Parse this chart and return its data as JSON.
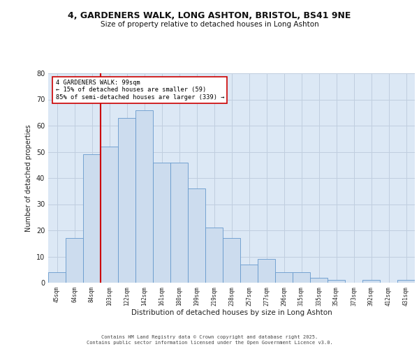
{
  "title1": "4, GARDENERS WALK, LONG ASHTON, BRISTOL, BS41 9NE",
  "title2": "Size of property relative to detached houses in Long Ashton",
  "xlabel": "Distribution of detached houses by size in Long Ashton",
  "ylabel": "Number of detached properties",
  "labels": [
    "45sqm",
    "64sqm",
    "84sqm",
    "103sqm",
    "122sqm",
    "142sqm",
    "161sqm",
    "180sqm",
    "199sqm",
    "219sqm",
    "238sqm",
    "257sqm",
    "277sqm",
    "296sqm",
    "315sqm",
    "335sqm",
    "354sqm",
    "373sqm",
    "392sqm",
    "412sqm",
    "431sqm"
  ],
  "heights": [
    4,
    17,
    49,
    52,
    63,
    66,
    46,
    46,
    36,
    21,
    17,
    7,
    9,
    4,
    4,
    2,
    1,
    0,
    1,
    0,
    1
  ],
  "bar_color": "#ccdcee",
  "bar_edge_color": "#6699cc",
  "grid_color": "#c0cedf",
  "bg_color": "#dce8f5",
  "vline_color": "#cc0000",
  "vline_x": 2.5,
  "annotation_text": "4 GARDENERS WALK: 99sqm\n← 15% of detached houses are smaller (59)\n85% of semi-detached houses are larger (339) →",
  "ylim": [
    0,
    80
  ],
  "yticks": [
    0,
    10,
    20,
    30,
    40,
    50,
    60,
    70,
    80
  ],
  "footer1": "Contains HM Land Registry data © Crown copyright and database right 2025.",
  "footer2": "Contains public sector information licensed under the Open Government Licence v3.0."
}
